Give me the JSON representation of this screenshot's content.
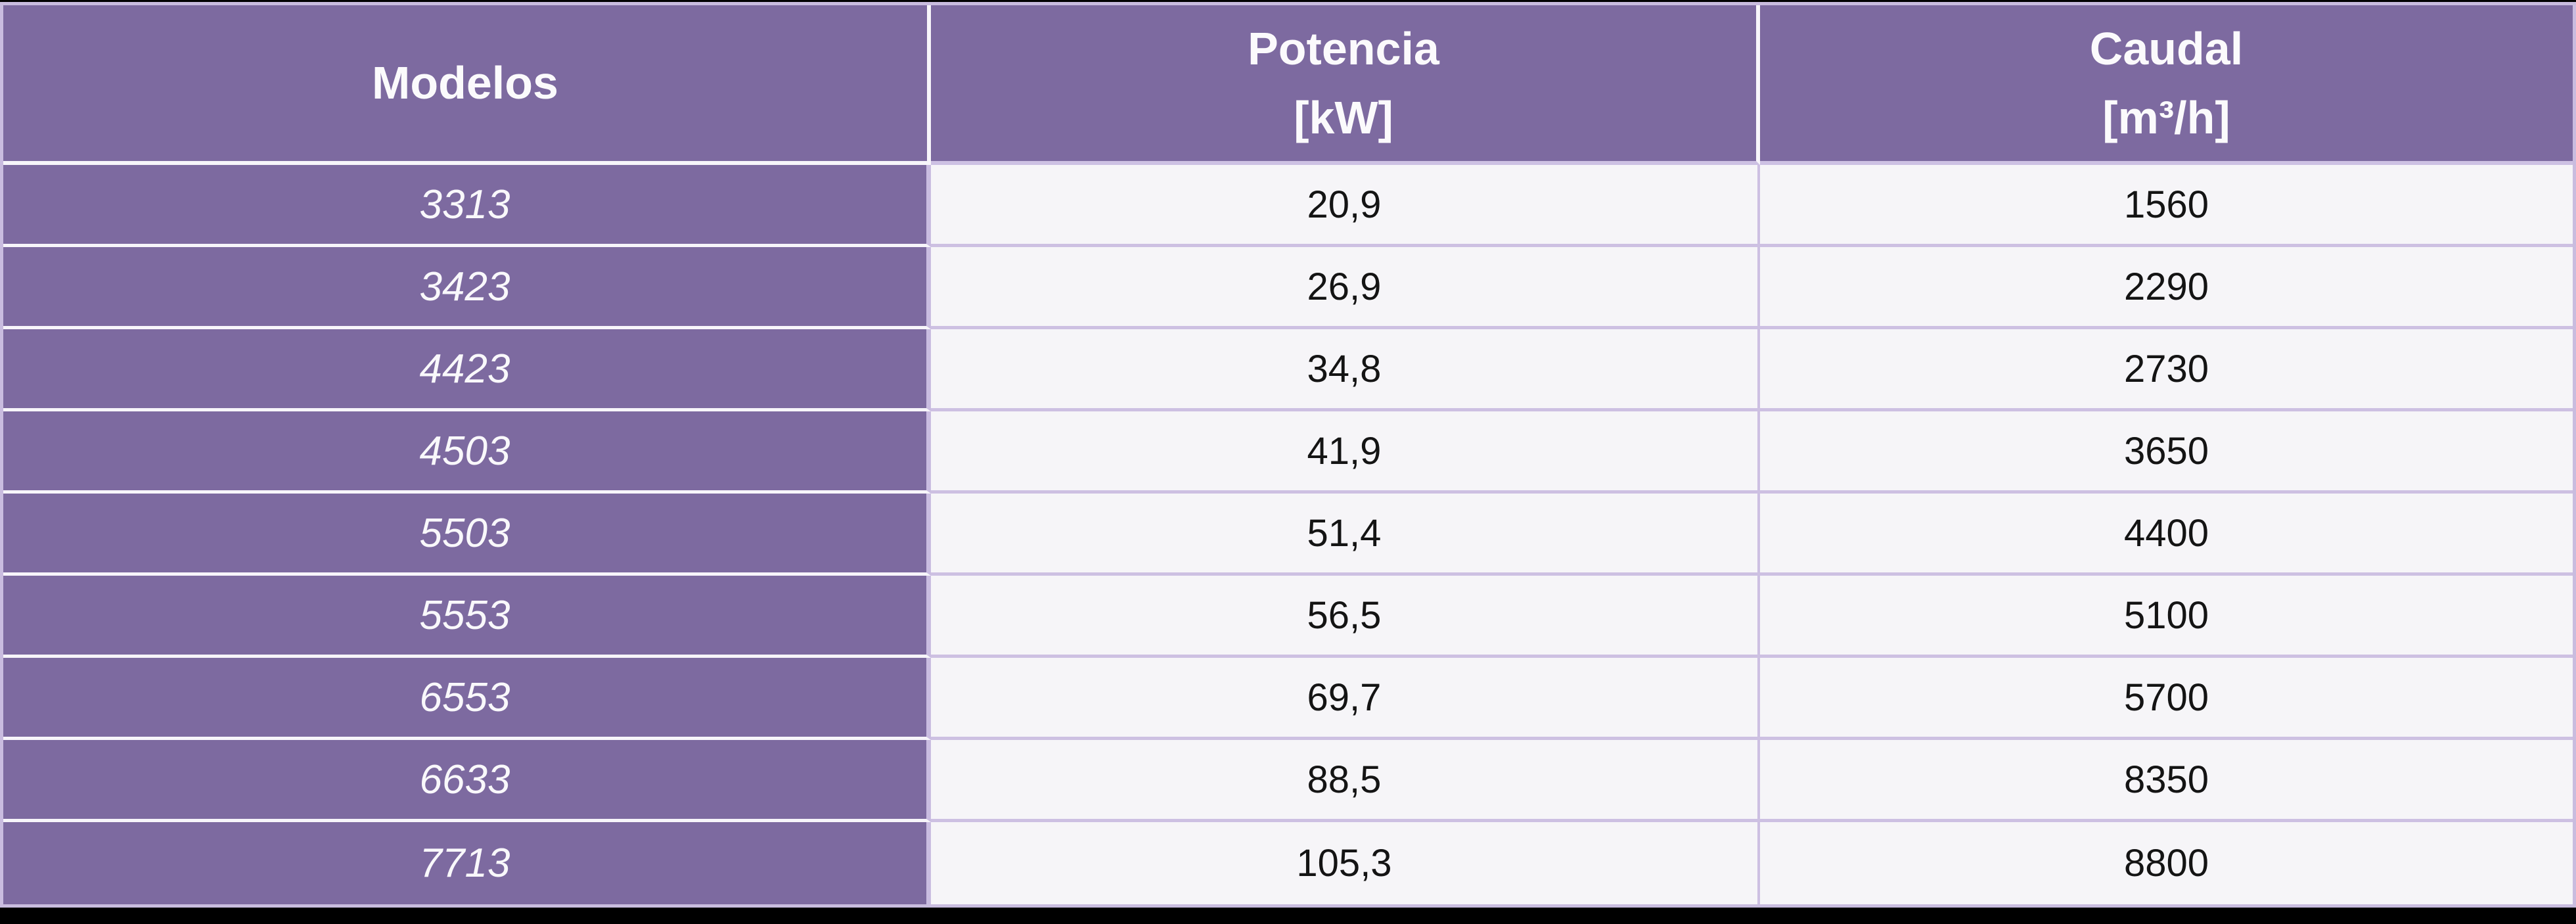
{
  "colors": {
    "header_purple": "#7D6AA0",
    "cell_light": "#F6F5F8",
    "grid_lavender": "#C9BCDF",
    "grid_white": "#F7F5FA",
    "header_text": "#FBFAFC",
    "data_text": "#141414",
    "bottom_bar": "#000000"
  },
  "table": {
    "header": {
      "models": "Modelos",
      "potencia_line1": "Potencia",
      "potencia_line2": "[kW]",
      "caudal_line1": "Caudal",
      "caudal_line2": "[m³/h]"
    },
    "rows": [
      {
        "model": "3313",
        "potencia": "20,9",
        "caudal": "1560"
      },
      {
        "model": "3423",
        "potencia": "26,9",
        "caudal": "2290"
      },
      {
        "model": "4423",
        "potencia": "34,8",
        "caudal": "2730"
      },
      {
        "model": "4503",
        "potencia": "41,9",
        "caudal": "3650"
      },
      {
        "model": "5503",
        "potencia": "51,4",
        "caudal": "4400"
      },
      {
        "model": "5553",
        "potencia": "56,5",
        "caudal": "5100"
      },
      {
        "model": "6553",
        "potencia": "69,7",
        "caudal": "5700"
      },
      {
        "model": "6633",
        "potencia": "88,5",
        "caudal": "8350"
      },
      {
        "model": "7713",
        "potencia": "105,3",
        "caudal": "8800"
      }
    ]
  },
  "chart_data": {
    "type": "table",
    "columns": [
      "Modelos",
      "Potencia [kW]",
      "Caudal [m³/h]"
    ],
    "rows": [
      [
        "3313",
        "20,9",
        "1560"
      ],
      [
        "3423",
        "26,9",
        "2290"
      ],
      [
        "4423",
        "34,8",
        "2730"
      ],
      [
        "4503",
        "41,9",
        "3650"
      ],
      [
        "5503",
        "51,4",
        "4400"
      ],
      [
        "5553",
        "56,5",
        "5100"
      ],
      [
        "6553",
        "69,7",
        "5700"
      ],
      [
        "6633",
        "88,5",
        "8350"
      ],
      [
        "7713",
        "105,3",
        "8800"
      ]
    ]
  }
}
